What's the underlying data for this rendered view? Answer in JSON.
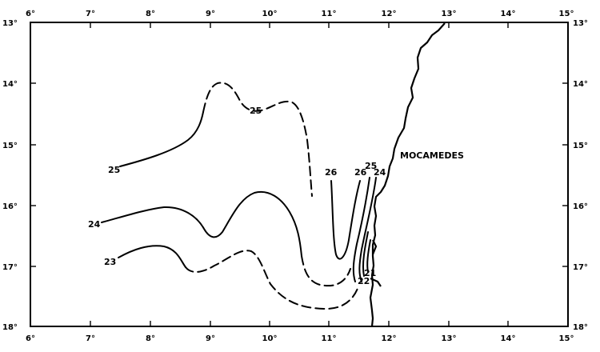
{
  "map": {
    "lon_labels_top": [
      "6°",
      "7°",
      "8°",
      "9°",
      "10°",
      "11°",
      "12°",
      "13°",
      "14°",
      "15°"
    ],
    "lon_labels_bottom": [
      "6°",
      "7°",
      "8°",
      "9°",
      "10°",
      "11°",
      "12°",
      "13°",
      "14°",
      "15°"
    ],
    "lat_labels_left": [
      "13°",
      "14°",
      "15°",
      "16°",
      "17°",
      "18°"
    ],
    "lat_labels_right": [
      "13°",
      "14°",
      "15°",
      "16°",
      "17°",
      "18°"
    ],
    "place_name": "MOCAMEDES",
    "isolines": [
      {
        "value": "25",
        "labels": [
          "25",
          "25",
          "25"
        ]
      },
      {
        "value": "24",
        "labels": [
          "24",
          "24"
        ]
      },
      {
        "value": "23",
        "labels": [
          "23"
        ]
      },
      {
        "value": "26",
        "labels": [
          "26",
          "26"
        ]
      },
      {
        "value": "22",
        "labels": [
          "22"
        ]
      },
      {
        "value": "21",
        "labels": [
          "21"
        ]
      }
    ]
  }
}
